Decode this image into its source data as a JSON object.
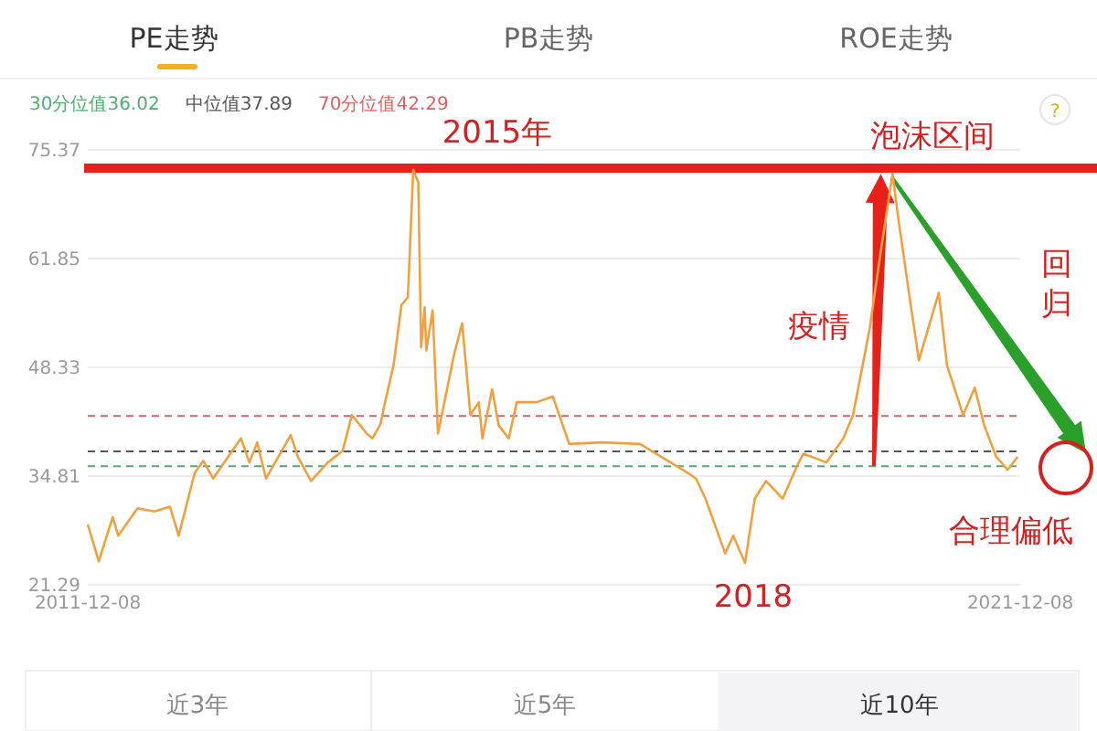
{
  "chart_data": {
    "type": "line",
    "annotations": [
      "PE走势",
      "PB走势",
      "ROE走势",
      "2015年",
      {
        "text": "泡沫区间",
        "x": "2020-06-10",
        "y": 72.4
      },
      "疫情",
      "回归",
      "合理偏低",
      "2018",
      "近3年",
      "近5年",
      "近10年",
      "?"
    ],
    "series": [
      {
        "color": "#f0a040",
        "x": [
          "2011-12-08",
          "2012-01-20",
          "2012-03-15",
          "2012-04-05",
          "2012-06-20",
          "2012-08-25",
          "2012-10-25",
          "2012-11-28",
          "2013-01-30",
          "2013-03-05",
          "2013-04-12",
          "2013-07-30",
          "2013-09-01",
          "2013-10-02",
          "2013-11-05",
          "2014-02-10",
          "2014-03-10",
          "2014-05-01",
          "2014-07-05",
          "2014-09-01",
          "2014-10-08",
          "2014-12-05",
          "2014-12-28",
          "2015-01-28",
          "2015-02-10",
          "2015-03-20",
          "2015-04-20",
          "2015-05-15",
          "2015-06-05",
          "2015-06-25",
          "2015-07-06",
          "2015-07-20",
          "2015-07-26",
          "2015-08-20",
          "2015-09-10",
          "2015-11-14",
          "2015-12-14",
          "2016-01-15",
          "2016-02-17",
          "2016-03-02",
          "2016-04-09",
          "2016-05-05",
          "2016-06-13",
          "2016-07-15",
          "2016-10-01",
          "2016-12-03",
          "2017-02-05",
          "2017-06-14",
          "2017-11-10",
          "2018-05-16",
          "2018-06-17",
          "2018-07-24",
          "2018-10-09",
          "2018-11-10",
          "2018-12-26",
          "2019-02-02",
          "2019-03-18",
          "2019-05-22",
          "2019-07-24",
          "2019-08-12",
          "2019-11-10",
          "2020-01-15",
          "2020-02-22",
          "2020-04-27",
          "2020-06-10",
          "2020-07-26",
          "2020-08-15",
          "2020-09-28",
          "2020-11-06",
          "2021-01-23",
          "2021-02-24",
          "2021-04-28",
          "2021-06-13",
          "2021-07-20",
          "2021-09-05",
          "2021-10-20",
          "2021-11-28"
        ],
        "values": [
          28.8,
          24.2,
          29.7,
          27.4,
          30.8,
          30.4,
          31.0,
          27.4,
          35.2,
          36.7,
          34.5,
          39.5,
          36.5,
          39.0,
          34.5,
          39.9,
          37.2,
          34.2,
          36.5,
          37.9,
          42.4,
          40.1,
          39.5,
          41.3,
          43.3,
          48.6,
          56.1,
          57.0,
          72.9,
          71.3,
          50.8,
          55.8,
          50.4,
          55.4,
          40.1,
          50.2,
          53.8,
          42.4,
          44.0,
          39.5,
          45.6,
          41.1,
          39.5,
          44.0,
          44.0,
          44.7,
          38.8,
          39.0,
          38.8,
          35.2,
          34.5,
          32.0,
          25.2,
          27.4,
          24.0,
          32.0,
          34.2,
          32.0,
          36.5,
          37.6,
          36.5,
          39.5,
          42.4,
          53.1,
          62.8,
          72.4,
          67.4,
          57.6,
          49.2,
          57.6,
          48.6,
          42.4,
          45.8,
          41.1,
          37.2,
          35.6,
          37.2
        ]
      }
    ],
    "ref_lines": [
      {
        "axis": "y",
        "value": 36.02,
        "label": "30分位值36.02",
        "color": "#4caf6e",
        "line_style": "dashed"
      },
      {
        "axis": "y",
        "value": 37.89,
        "label": "中位值37.89",
        "color": "#555555",
        "line_style": "dashed"
      },
      {
        "axis": "y",
        "value": 42.29,
        "label": "70分位值42.29",
        "color": "#e06060",
        "line_style": "dashed"
      },
      {
        "axis": "y",
        "value": 73.1,
        "color": "#e8201a",
        "line_style": "solid"
      }
    ],
    "xlim": [
      "2011-12-08",
      "2021-12-08"
    ],
    "xticks": [
      "2011-12-08",
      "2021-12-08"
    ],
    "ylim": [
      21.29,
      75.37
    ],
    "yticks": [
      21.29,
      34.81,
      48.33,
      61.85,
      75.37
    ],
    "grid": "y",
    "marker": "none",
    "line_style": "solid"
  }
}
